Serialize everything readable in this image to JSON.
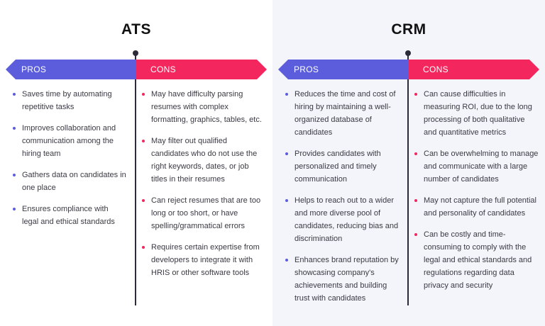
{
  "ats": {
    "title": "ATS",
    "pros_label": "PROS",
    "cons_label": "CONS",
    "pros": [
      "Saves time by automating repetitive tasks",
      "Improves collaboration and communication among the hiring team",
      "Gathers data on candidates in one place",
      "Ensures compliance with legal and ethical standards"
    ],
    "cons": [
      "May have difficulty parsing resumes with complex formatting, graphics, tables, etc.",
      "May filter out qualified candidates who do not use the right keywords, dates, or job titles in their resumes",
      "Can reject resumes that are too long or too short, or have spelling/grammatical errors",
      "Requires certain expertise from developers to integrate it with HRIS or other software tools"
    ]
  },
  "crm": {
    "title": "CRM",
    "pros_label": "PROS",
    "cons_label": "CONS",
    "pros": [
      "Reduces the time and cost of hiring by maintaining a well-organized database of candidates",
      "Provides candidates with personalized and timely communication",
      "Helps to reach out to a wider and more diverse pool of candidates, reducing bias and discrimination",
      "Enhances brand reputation by showcasing company's achievements and building trust with candidates"
    ],
    "cons": [
      "Can cause difficulties in measuring ROI, due to the long processing of both qualitative and quantitative metrics",
      "Can be overwhelming to manage and communicate with a large number of candidates",
      "May not capture the full potential and personality of candidates",
      "Can be costly and time-consuming to comply with the legal and ethical standards and regulations regarding data privacy and security"
    ]
  },
  "colors": {
    "pros": "#5b5ddc",
    "cons": "#f3275e",
    "axis": "#2b2b3a",
    "right_panel_bg": "#f3f5fa"
  }
}
